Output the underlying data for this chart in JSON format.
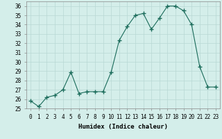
{
  "x": [
    0,
    1,
    2,
    3,
    4,
    5,
    6,
    7,
    8,
    9,
    10,
    11,
    12,
    13,
    14,
    15,
    16,
    17,
    18,
    19,
    20,
    21,
    22,
    23
  ],
  "y": [
    25.8,
    25.2,
    26.2,
    26.4,
    27.0,
    28.9,
    26.6,
    26.8,
    26.8,
    26.8,
    28.9,
    32.3,
    33.8,
    35.0,
    35.2,
    33.5,
    34.7,
    36.0,
    36.0,
    35.5,
    34.0,
    29.5,
    27.3,
    27.3
  ],
  "line_color": "#1a6b5a",
  "marker": "+",
  "marker_size": 4,
  "bg_color": "#d4eeea",
  "grid_color": "#b8d8d4",
  "xlabel": "Humidex (Indice chaleur)",
  "ylim": [
    25,
    36.5
  ],
  "xlim": [
    -0.5,
    23.5
  ],
  "yticks": [
    25,
    26,
    27,
    28,
    29,
    30,
    31,
    32,
    33,
    34,
    35,
    36
  ],
  "xtick_labels": [
    "0",
    "1",
    "2",
    "3",
    "4",
    "5",
    "6",
    "7",
    "8",
    "9",
    "10",
    "11",
    "12",
    "13",
    "14",
    "15",
    "16",
    "17",
    "18",
    "19",
    "20",
    "21",
    "22",
    "23"
  ],
  "font_size_label": 6.5,
  "font_size_tick": 5.5,
  "lw": 0.8
}
